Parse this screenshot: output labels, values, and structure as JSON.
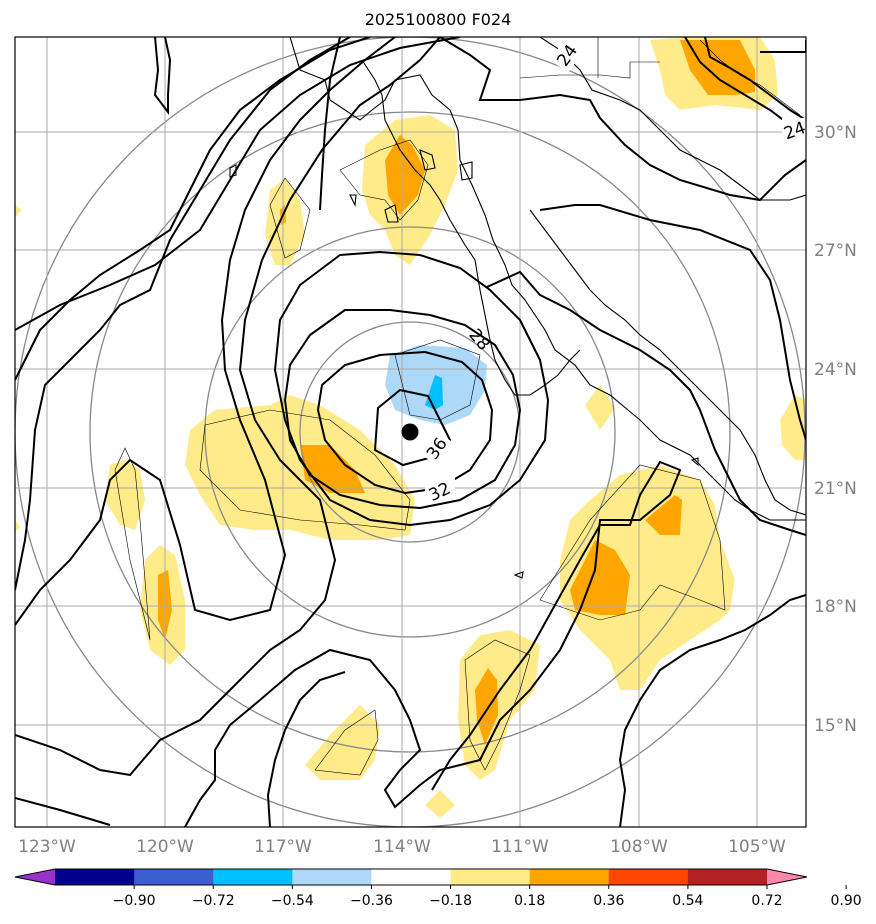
{
  "title": "2025100800 F024",
  "longitude_labels": [
    "123°W",
    "120°W",
    "117°W",
    "114°W",
    "111°W",
    "108°W",
    "105°W"
  ],
  "latitude_labels": [
    "30°N",
    "27°N",
    "24°N",
    "21°N",
    "18°N",
    "15°N"
  ],
  "contour_labels": [
    "24",
    "24",
    "28",
    "32",
    "36"
  ],
  "colorbar": {
    "ticks": [
      "−0.90",
      "−0.72",
      "−0.54",
      "−0.36",
      "−0.18",
      "0.18",
      "0.36",
      "0.54",
      "0.72",
      "0.90"
    ],
    "colors": [
      "#9932cc",
      "#00008b",
      "#3c5fd0",
      "#00bfff",
      "#add8f7",
      "#ffffff",
      "#ffeb8a",
      "#ffa500",
      "#ff4500",
      "#b22222",
      "#ff88aa"
    ]
  },
  "storm_center": {
    "lon": "113.8°W",
    "lat": "22.4°N"
  }
}
